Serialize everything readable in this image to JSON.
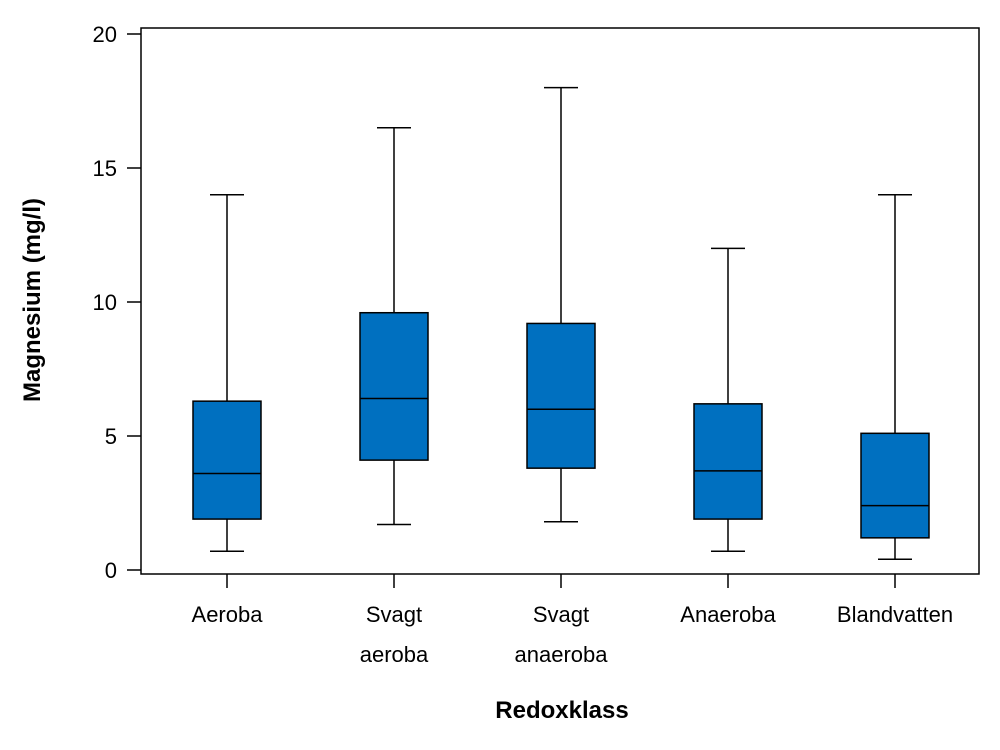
{
  "chart_data": {
    "type": "boxplot",
    "xlabel": "Redoxklass",
    "ylabel": "Magnesium (mg/l)",
    "ylim": [
      0,
      20
    ],
    "yticks": [
      "0",
      "5",
      "10",
      "15",
      "20"
    ],
    "grid": false,
    "box_color": "#0070C0",
    "categories": [
      {
        "lines": [
          "Aeroba"
        ],
        "whisker_low": 0.7,
        "q1": 1.9,
        "median": 3.6,
        "q3": 6.3,
        "whisker_high": 14.0
      },
      {
        "lines": [
          "Svagt",
          "aeroba"
        ],
        "whisker_low": 1.7,
        "q1": 4.1,
        "median": 6.4,
        "q3": 9.6,
        "whisker_high": 16.5
      },
      {
        "lines": [
          "Svagt",
          "anaeroba"
        ],
        "whisker_low": 1.8,
        "q1": 3.8,
        "median": 6.0,
        "q3": 9.2,
        "whisker_high": 18.0
      },
      {
        "lines": [
          "Anaeroba"
        ],
        "whisker_low": 0.7,
        "q1": 1.9,
        "median": 3.7,
        "q3": 6.2,
        "whisker_high": 12.0
      },
      {
        "lines": [
          "Blandvatten"
        ],
        "whisker_low": 0.4,
        "q1": 1.2,
        "median": 2.4,
        "q3": 5.1,
        "whisker_high": 14.0
      }
    ]
  }
}
